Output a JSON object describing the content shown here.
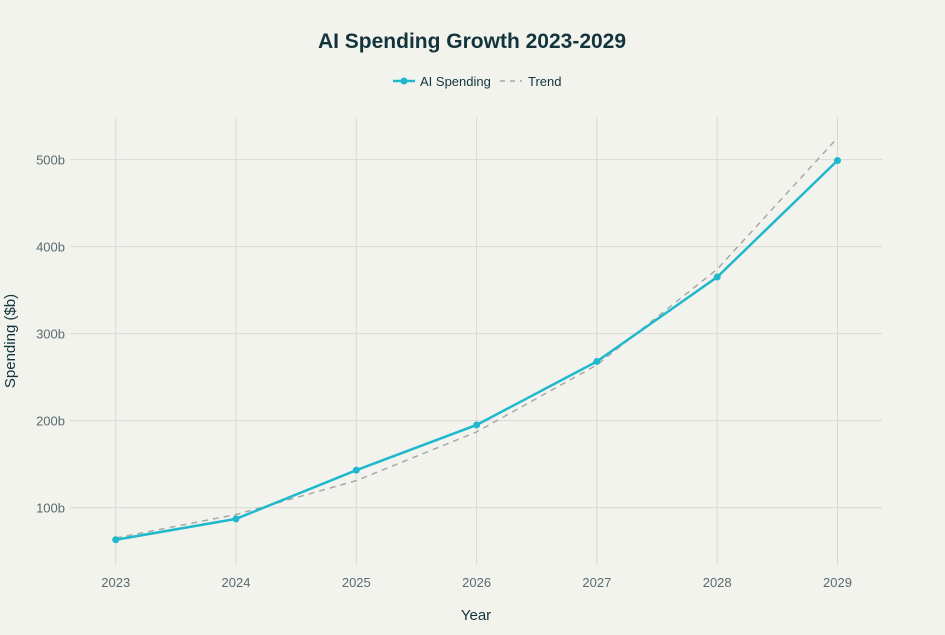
{
  "chart_data": {
    "type": "line",
    "title": "AI Spending Growth 2023-2029",
    "xlabel": "Year",
    "ylabel": "Spending ($b)",
    "x": [
      2023,
      2024,
      2025,
      2026,
      2027,
      2028,
      2029
    ],
    "x_tick_labels": [
      "2023",
      "2024",
      "2025",
      "2026",
      "2027",
      "2028",
      "2029"
    ],
    "y_ticks": [
      100,
      200,
      300,
      400,
      500
    ],
    "y_tick_labels": [
      "100b",
      "200b",
      "300b",
      "400b",
      "500b"
    ],
    "xlim": [
      2022.62,
      2029.37
    ],
    "ylim": [
      34,
      549
    ],
    "grid": true,
    "legend_position": "top-center",
    "series": [
      {
        "name": "AI Spending",
        "values": [
          63,
          87,
          143,
          195,
          268,
          365,
          499
        ],
        "color": "#1fb8cd",
        "style": "solid",
        "markers": true
      },
      {
        "name": "Trend",
        "values": [
          65,
          92,
          131,
          187,
          264,
          374,
          525
        ],
        "color": "#a8a8a8",
        "style": "dashed",
        "markers": false
      }
    ]
  }
}
